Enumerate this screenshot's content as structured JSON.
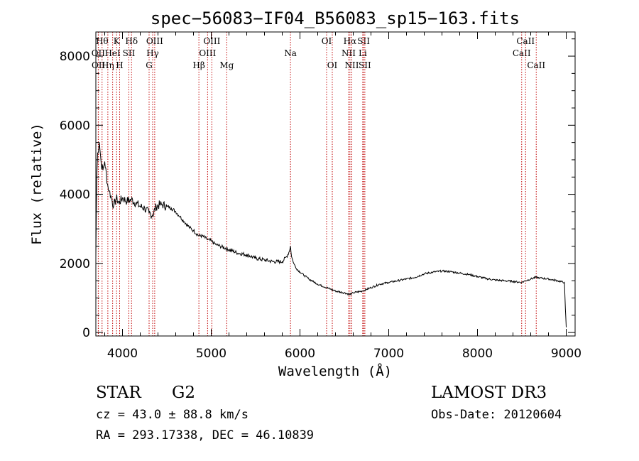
{
  "chart_data": {
    "type": "line",
    "title": "spec−56083−IF04_B56083_sp15−163.fits",
    "xlabel": "Wavelength (Å)",
    "ylabel": "Flux (relative)",
    "xlim": [
      3700,
      9100
    ],
    "ylim": [
      -100,
      8700
    ],
    "x_ticks": [
      4000,
      5000,
      6000,
      7000,
      8000,
      9000
    ],
    "x_tick_labels": [
      "4000",
      "5000",
      "6000",
      "7000",
      "8000",
      "9000"
    ],
    "y_ticks": [
      0,
      2000,
      4000,
      6000,
      8000
    ],
    "y_tick_labels": [
      "0",
      "2000",
      "4000",
      "6000",
      "8000"
    ],
    "grid": false,
    "series": [
      {
        "name": "flux",
        "x": [
          3700,
          3710,
          3720,
          3740,
          3760,
          3780,
          3800,
          3830,
          3850,
          3870,
          3900,
          3930,
          3960,
          4000,
          4050,
          4100,
          4150,
          4200,
          4250,
          4300,
          4340,
          4380,
          4420,
          4450,
          4500,
          4550,
          4600,
          4650,
          4700,
          4750,
          4800,
          4861,
          4900,
          4950,
          5000,
          5050,
          5100,
          5200,
          5300,
          5400,
          5500,
          5600,
          5700,
          5800,
          5850,
          5880,
          5893,
          5905,
          5930,
          5960,
          6000,
          6050,
          6100,
          6200,
          6300,
          6400,
          6500,
          6563,
          6600,
          6700,
          6800,
          6900,
          7000,
          7100,
          7200,
          7300,
          7400,
          7500,
          7600,
          7700,
          7800,
          7900,
          8000,
          8100,
          8200,
          8300,
          8400,
          8498,
          8542,
          8600,
          8662,
          8700,
          8800,
          8900,
          8980,
          8990,
          9000
        ],
        "y": [
          2200,
          4500,
          5200,
          5500,
          4900,
          4700,
          4950,
          4300,
          4100,
          3950,
          3650,
          3900,
          3750,
          3900,
          3800,
          3850,
          3750,
          3650,
          3600,
          3450,
          3400,
          3650,
          3700,
          3700,
          3650,
          3600,
          3500,
          3350,
          3200,
          3050,
          2950,
          2800,
          2800,
          2700,
          2650,
          2550,
          2500,
          2400,
          2300,
          2250,
          2150,
          2100,
          2050,
          2050,
          2200,
          2350,
          2500,
          2200,
          2000,
          1850,
          1750,
          1650,
          1550,
          1400,
          1300,
          1200,
          1150,
          1100,
          1150,
          1200,
          1300,
          1400,
          1450,
          1500,
          1550,
          1600,
          1700,
          1750,
          1780,
          1760,
          1720,
          1680,
          1620,
          1560,
          1520,
          1500,
          1480,
          1450,
          1500,
          1550,
          1600,
          1580,
          1550,
          1500,
          1450,
          700,
          150
        ]
      }
    ],
    "lines": [
      {
        "x": 3727,
        "label": "OII",
        "row": 1
      },
      {
        "x": 3729,
        "label": "OII",
        "row": 2
      },
      {
        "x": 3770,
        "label": "Hθ",
        "row": 0
      },
      {
        "x": 3835,
        "label": "Hη",
        "row": 2
      },
      {
        "x": 3889,
        "label": "HeI",
        "row": 1
      },
      {
        "x": 3934,
        "label": "K",
        "row": 0
      },
      {
        "x": 3968,
        "label": "H",
        "row": 2
      },
      {
        "x": 4072,
        "label": "SII",
        "row": 1
      },
      {
        "x": 4102,
        "label": "Hδ",
        "row": 0
      },
      {
        "x": 4300,
        "label": "G",
        "row": 2
      },
      {
        "x": 4340,
        "label": "Hγ",
        "row": 1
      },
      {
        "x": 4363,
        "label": "OIII",
        "row": 0
      },
      {
        "x": 4861,
        "label": "Hβ",
        "row": 2
      },
      {
        "x": 4959,
        "label": "OIII",
        "row": 1
      },
      {
        "x": 5007,
        "label": "OIII",
        "row": 0
      },
      {
        "x": 5175,
        "label": "Mg",
        "row": 2
      },
      {
        "x": 5893,
        "label": "Na",
        "row": 1
      },
      {
        "x": 6300,
        "label": "OI",
        "row": 0
      },
      {
        "x": 6364,
        "label": "OI",
        "row": 2
      },
      {
        "x": 6548,
        "label": "NII",
        "row": 1
      },
      {
        "x": 6563,
        "label": "Hα",
        "row": 0
      },
      {
        "x": 6584,
        "label": "NII",
        "row": 2
      },
      {
        "x": 6707,
        "label": "Li",
        "row": 1
      },
      {
        "x": 6717,
        "label": "SII",
        "row": 0
      },
      {
        "x": 6731,
        "label": "SII",
        "row": 2
      },
      {
        "x": 8498,
        "label": "CaII",
        "row": 1
      },
      {
        "x": 8542,
        "label": "CaII",
        "row": 0
      },
      {
        "x": 8662,
        "label": "CaII",
        "row": 2
      }
    ]
  },
  "info": {
    "class": "STAR",
    "subclass": "G2",
    "survey": "LAMOST DR3",
    "cz": "cz = 43.0 ± 88.8 km/s",
    "obs_date": "Obs-Date: 20120604",
    "coords": "RA = 293.17338, DEC =  46.10839"
  }
}
